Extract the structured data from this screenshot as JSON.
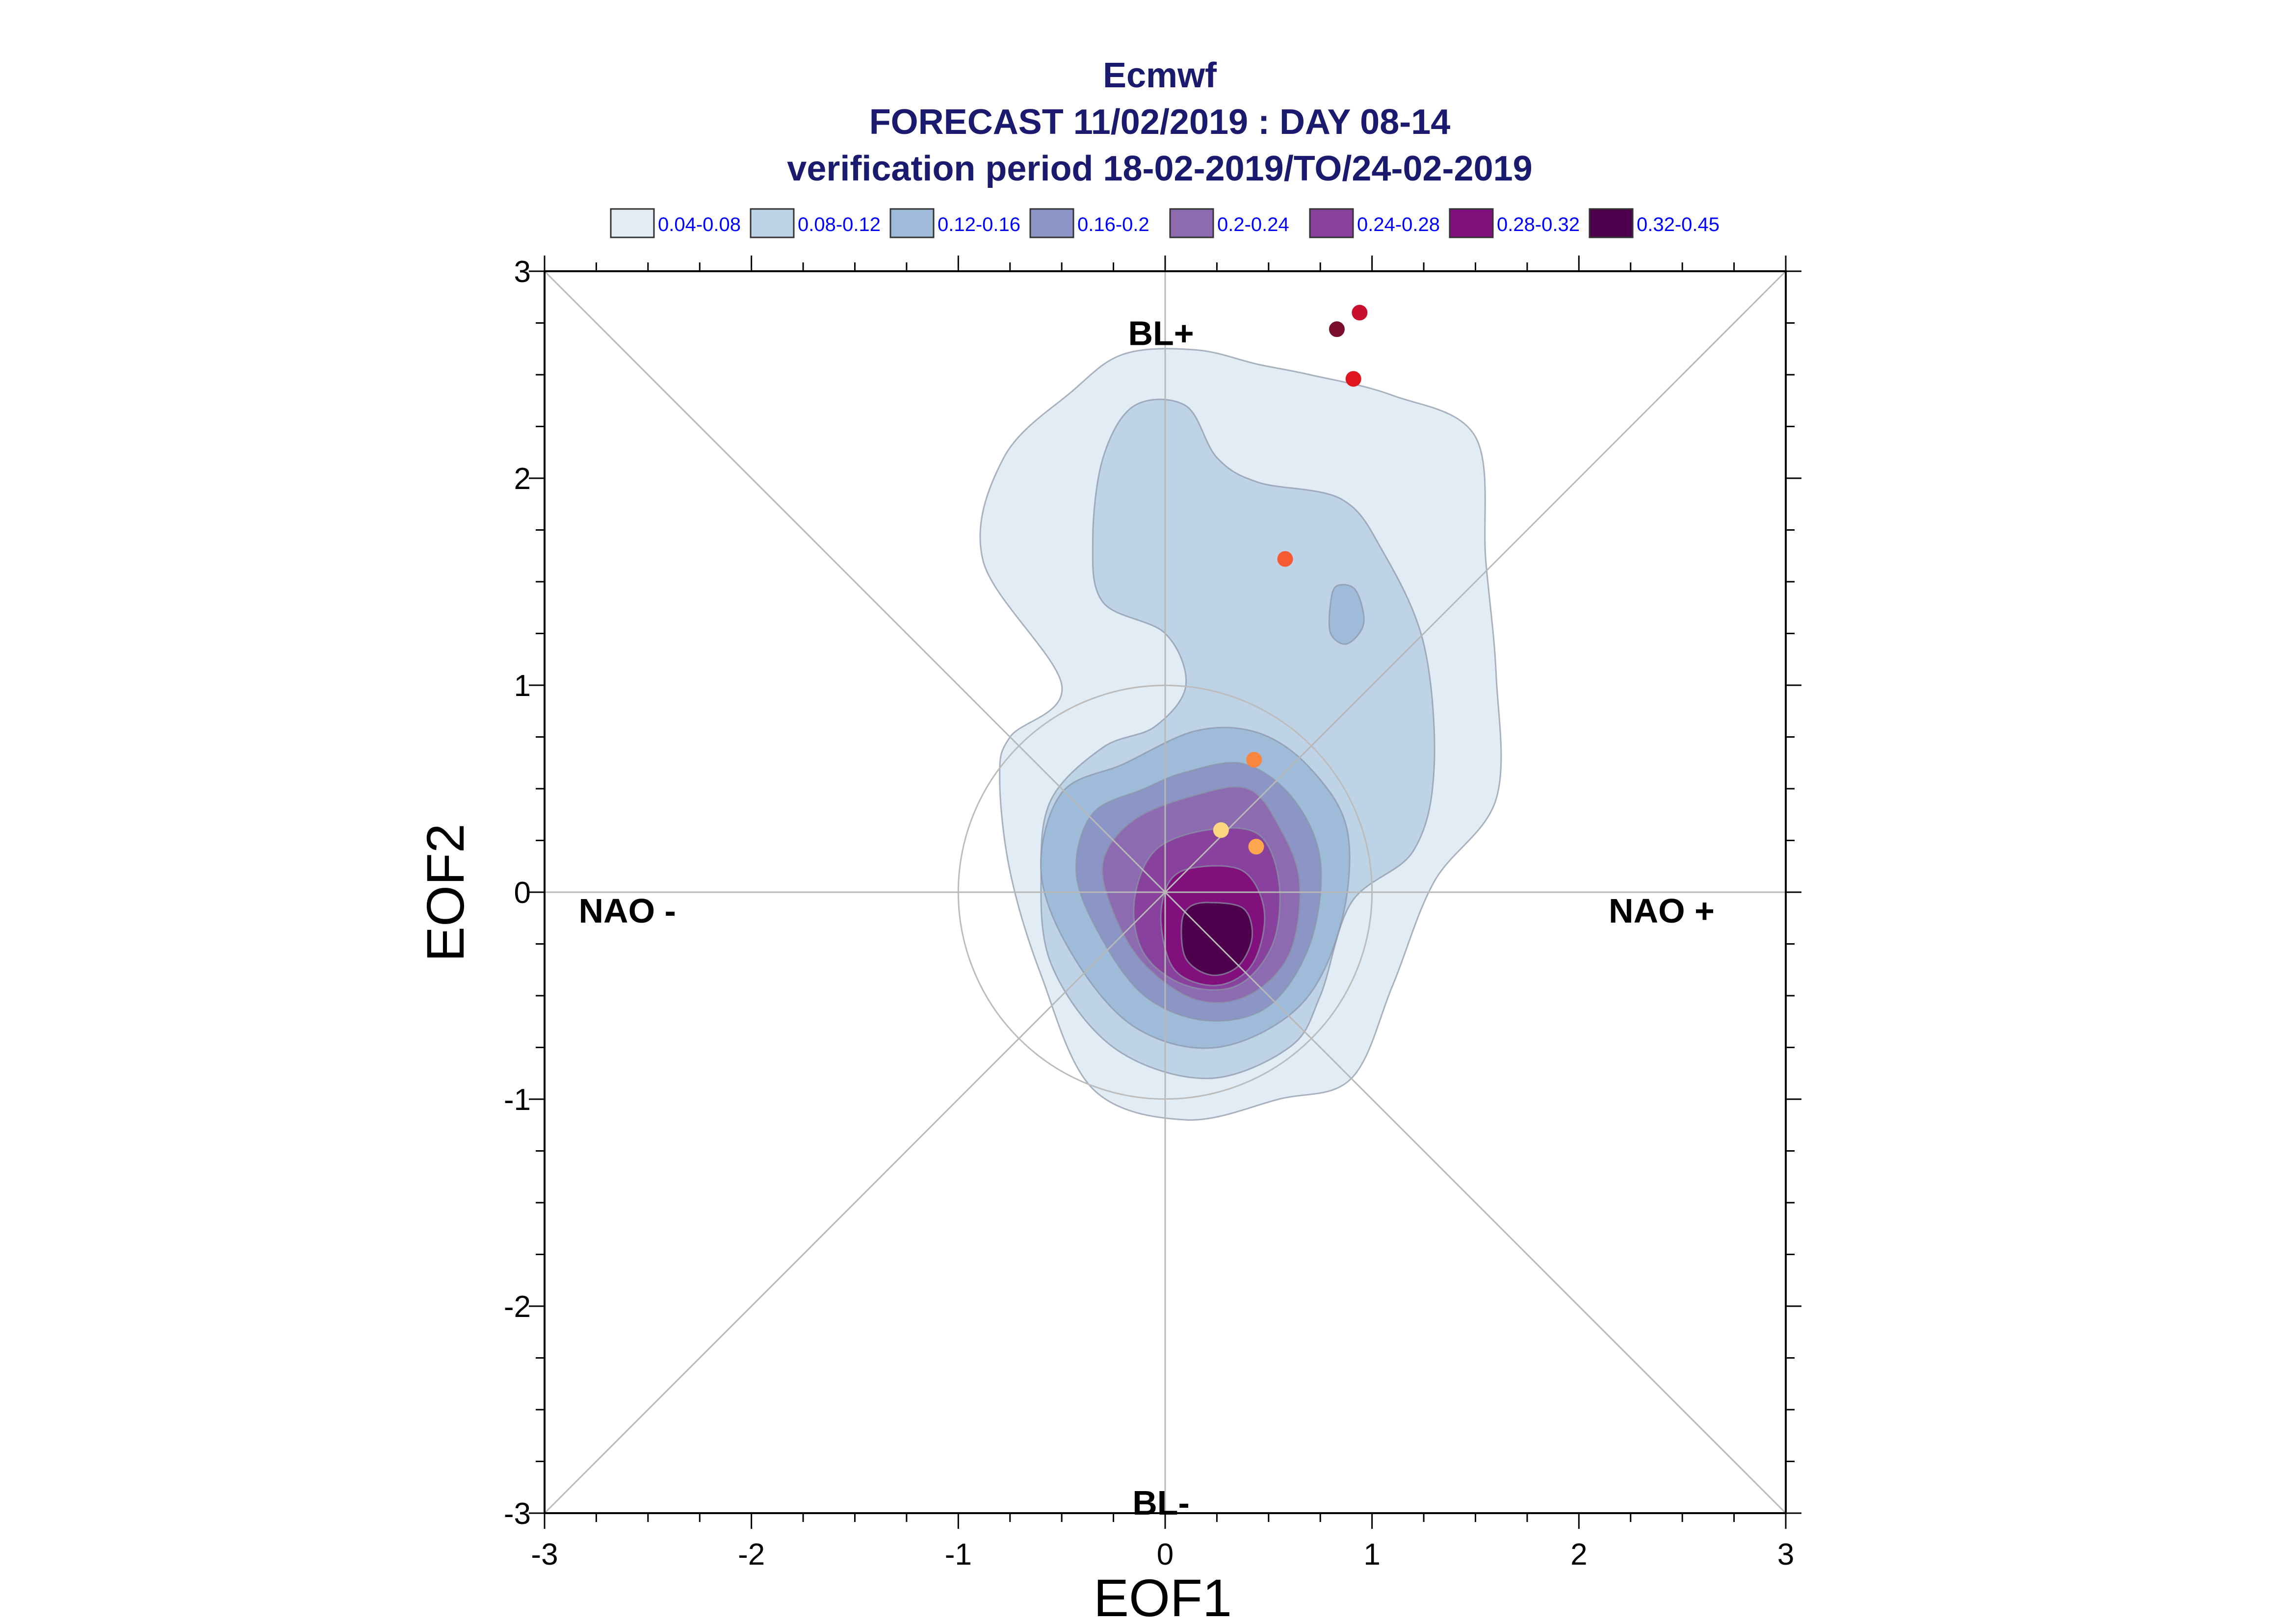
{
  "chart_data": {
    "type": "scatter",
    "title_lines": [
      "Ecmwf",
      "FORECAST 11/02/2019 : DAY 08-14",
      "verification period 18-02-2019/TO/24-02-2019"
    ],
    "xlabel": "EOF1",
    "ylabel": "EOF2",
    "xlim": [
      -3,
      3
    ],
    "ylim": [
      -3,
      3
    ],
    "xticks": [
      -3,
      -2,
      -1,
      0,
      1,
      2,
      3
    ],
    "yticks": [
      -3,
      -2,
      -1,
      0,
      1,
      2,
      3
    ],
    "grid": false,
    "legend_placement": "top",
    "legend": [
      {
        "label": "0.04-0.08",
        "color": "#e1ecf4"
      },
      {
        "label": "0.08-0.12",
        "color": "#bfd3e6"
      },
      {
        "label": "0.12-0.16",
        "color": "#9ebcda"
      },
      {
        "label": "0.16-0.2",
        "color": "#8c96c6"
      },
      {
        "label": "0.2-0.24",
        "color": "#8c6bb1"
      },
      {
        "label": "0.24-0.28",
        "color": "#88419d"
      },
      {
        "label": "0.28-0.32",
        "color": "#810f7c"
      },
      {
        "label": "0.32-0.45",
        "color": "#4d004b"
      }
    ],
    "regime_labels": [
      {
        "text": "BL+",
        "x": -0.02,
        "y": 2.7
      },
      {
        "text": "BL-",
        "x": -0.02,
        "y": -2.95
      },
      {
        "text": "NAO -",
        "x": -2.6,
        "y": -0.09
      },
      {
        "text": "NAO +",
        "x": 2.4,
        "y": -0.09
      }
    ],
    "reference_circle_radius": 1,
    "density_contours": [
      {
        "level": "0.04-0.08",
        "color": "#e1ecf4",
        "points": [
          [
            -0.5,
            1.0
          ],
          [
            -0.88,
            1.6
          ],
          [
            -0.78,
            2.1
          ],
          [
            -0.45,
            2.42
          ],
          [
            -0.2,
            2.6
          ],
          [
            0.15,
            2.62
          ],
          [
            0.45,
            2.55
          ],
          [
            0.7,
            2.5
          ],
          [
            1.1,
            2.4
          ],
          [
            1.5,
            2.2
          ],
          [
            1.55,
            1.6
          ],
          [
            1.6,
            1.05
          ],
          [
            1.6,
            0.45
          ],
          [
            1.3,
            0.05
          ],
          [
            1.1,
            -0.45
          ],
          [
            0.9,
            -0.9
          ],
          [
            0.55,
            -1.0
          ],
          [
            0.1,
            -1.1
          ],
          [
            -0.35,
            -0.95
          ],
          [
            -0.6,
            -0.4
          ],
          [
            -0.75,
            0.1
          ],
          [
            -0.8,
            0.55
          ],
          [
            -0.75,
            0.75
          ]
        ]
      },
      {
        "level": "0.08-0.12",
        "color": "#bfd3e6",
        "points": [
          [
            0.1,
            1.0
          ],
          [
            0.0,
            1.25
          ],
          [
            -0.3,
            1.4
          ],
          [
            -0.35,
            1.7
          ],
          [
            -0.3,
            2.1
          ],
          [
            -0.15,
            2.35
          ],
          [
            0.1,
            2.35
          ],
          [
            0.25,
            2.1
          ],
          [
            0.45,
            1.98
          ],
          [
            0.85,
            1.9
          ],
          [
            1.05,
            1.65
          ],
          [
            1.25,
            1.2
          ],
          [
            1.3,
            0.6
          ],
          [
            1.2,
            0.2
          ],
          [
            0.9,
            -0.05
          ],
          [
            0.75,
            -0.5
          ],
          [
            0.6,
            -0.75
          ],
          [
            0.2,
            -0.9
          ],
          [
            -0.25,
            -0.75
          ],
          [
            -0.55,
            -0.35
          ],
          [
            -0.6,
            0.1
          ],
          [
            -0.55,
            0.45
          ],
          [
            -0.3,
            0.7
          ],
          [
            -0.05,
            0.8
          ]
        ]
      },
      {
        "level": "0.12-0.16",
        "color": "#9ebcda",
        "points": [
          [
            0.15,
            0.78
          ],
          [
            0.45,
            0.77
          ],
          [
            0.7,
            0.6
          ],
          [
            0.88,
            0.3
          ],
          [
            0.85,
            -0.15
          ],
          [
            0.65,
            -0.55
          ],
          [
            0.25,
            -0.75
          ],
          [
            -0.15,
            -0.65
          ],
          [
            -0.45,
            -0.3
          ],
          [
            -0.6,
            0.1
          ],
          [
            -0.5,
            0.48
          ],
          [
            -0.2,
            0.62
          ]
        ]
      },
      {
        "level": "0.16-0.2",
        "color": "#8c96c6",
        "points": [
          [
            0.1,
            0.58
          ],
          [
            0.38,
            0.62
          ],
          [
            0.62,
            0.45
          ],
          [
            0.75,
            0.15
          ],
          [
            0.7,
            -0.25
          ],
          [
            0.5,
            -0.55
          ],
          [
            0.2,
            -0.62
          ],
          [
            -0.1,
            -0.5
          ],
          [
            -0.32,
            -0.2
          ],
          [
            -0.43,
            0.1
          ],
          [
            -0.35,
            0.38
          ],
          [
            -0.1,
            0.5
          ]
        ]
      },
      {
        "level": "0.2-0.24",
        "color": "#8c6bb1",
        "points": [
          [
            0.15,
            0.47
          ],
          [
            0.4,
            0.5
          ],
          [
            0.55,
            0.32
          ],
          [
            0.65,
            0.05
          ],
          [
            0.6,
            -0.3
          ],
          [
            0.4,
            -0.5
          ],
          [
            0.15,
            -0.52
          ],
          [
            -0.1,
            -0.35
          ],
          [
            -0.25,
            -0.1
          ],
          [
            -0.3,
            0.15
          ],
          [
            -0.15,
            0.35
          ]
        ]
      },
      {
        "level": "0.24-0.28",
        "color": "#88419d",
        "points": [
          [
            0.2,
            0.3
          ],
          [
            0.45,
            0.28
          ],
          [
            0.55,
            0.05
          ],
          [
            0.52,
            -0.25
          ],
          [
            0.35,
            -0.45
          ],
          [
            0.1,
            -0.45
          ],
          [
            -0.1,
            -0.3
          ],
          [
            -0.15,
            -0.05
          ],
          [
            -0.05,
            0.2
          ]
        ]
      },
      {
        "level": "0.28-0.32",
        "color": "#810f7c",
        "points": [
          [
            0.15,
            0.12
          ],
          [
            0.38,
            0.1
          ],
          [
            0.48,
            -0.1
          ],
          [
            0.42,
            -0.35
          ],
          [
            0.25,
            -0.45
          ],
          [
            0.05,
            -0.38
          ],
          [
            -0.02,
            -0.15
          ],
          [
            0.02,
            0.05
          ]
        ]
      },
      {
        "level": "0.32-0.45",
        "color": "#4d004b",
        "points": [
          [
            0.22,
            -0.05
          ],
          [
            0.38,
            -0.08
          ],
          [
            0.42,
            -0.22
          ],
          [
            0.35,
            -0.36
          ],
          [
            0.22,
            -0.4
          ],
          [
            0.1,
            -0.32
          ],
          [
            0.08,
            -0.15
          ],
          [
            0.12,
            -0.07
          ]
        ]
      },
      {
        "level": "0.12-0.16",
        "color": "#9ebcda",
        "points": [
          [
            0.83,
            1.48
          ],
          [
            0.92,
            1.46
          ],
          [
            0.96,
            1.3
          ],
          [
            0.88,
            1.2
          ],
          [
            0.8,
            1.25
          ],
          [
            0.8,
            1.4
          ]
        ]
      }
    ],
    "points": [
      {
        "x": 0.94,
        "y": 2.8,
        "color": "#c8102e"
      },
      {
        "x": 0.83,
        "y": 2.72,
        "color": "#7a0e2c"
      },
      {
        "x": 0.91,
        "y": 2.48,
        "color": "#e0161e"
      },
      {
        "x": 0.58,
        "y": 1.61,
        "color": "#f55a33"
      },
      {
        "x": 0.43,
        "y": 0.64,
        "color": "#f9873f"
      },
      {
        "x": 0.27,
        "y": 0.3,
        "color": "#fdd580"
      },
      {
        "x": 0.44,
        "y": 0.22,
        "color": "#fca64f"
      }
    ]
  }
}
